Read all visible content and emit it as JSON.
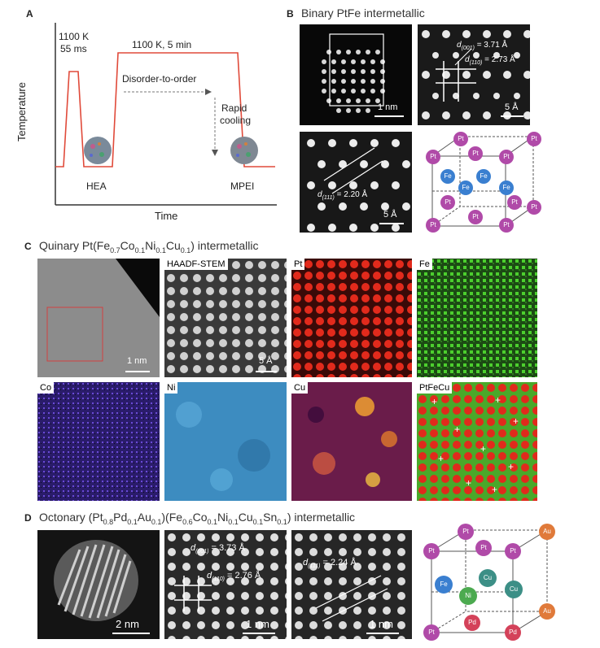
{
  "panels": {
    "A": {
      "letter": "A",
      "peak_label_top": "1100 K",
      "peak_label_bottom": "55 ms",
      "plateau_label": "1100 K, 5 min",
      "plateau_arrow_label": "Disorder-to-order",
      "cooling_label_top": "Rapid",
      "cooling_label_bottom": "cooling",
      "left_particle_label": "HEA",
      "right_particle_label": "MPEI",
      "ylabel": "Temperature",
      "xlabel": "Time",
      "line_color": "#e04a3a"
    },
    "B": {
      "letter": "B",
      "title": "Binary PtFe intermetallic",
      "scale_1": "1 nm",
      "scale_2": "5 Å",
      "scale_3": "5 Å",
      "d001": "= 3.71 Å",
      "d110": "= 2.73 Å",
      "d111": "= 2.20 Å",
      "d_symbol": "d",
      "sub_001": "(001)",
      "sub_110": "(110)",
      "sub_111": "(111)",
      "atoms": {
        "corner": "Pt",
        "face": "Pt",
        "center": "Fe"
      }
    },
    "C": {
      "letter": "C",
      "title_prefix": "Quinary Pt(Fe",
      "title_subs": [
        "0.7",
        "0.1",
        "0.1",
        "0.1"
      ],
      "title_parts": [
        "Co",
        "Ni",
        "Cu",
        ") intermetallic"
      ],
      "tiles": {
        "haadf": "HAADF-STEM",
        "pt": "Pt",
        "fe": "Fe",
        "co": "Co",
        "ni": "Ni",
        "cu": "Cu",
        "ptfecu": "PtFeCu"
      },
      "scale_1": "1 nm",
      "scale_2": "5 Å"
    },
    "D": {
      "letter": "D",
      "title_text": "Octonary (Pt",
      "title_subs": [
        "0.8",
        "0.1",
        "0.1",
        "0.6",
        "0.1",
        "0.1",
        "0.1",
        "0.1"
      ],
      "title_parts": [
        "Pd",
        "Au",
        ")(Fe",
        "Co",
        "Ni",
        "Cu",
        "Sn",
        ") intermetallic"
      ],
      "scale_1": "2 nm",
      "scale_2": "1 nm",
      "scale_3": "1 nm",
      "d001": "= 3.73 Å",
      "d110": "= 2.76 Å",
      "d111": "= 2.24 Å",
      "d_symbol": "d",
      "sub_001": "(001)",
      "sub_110": "(110)",
      "sub_111": "(111)",
      "atoms": {
        "corners": [
          "Pt",
          "Pt",
          "Au",
          "Pt",
          "Pt",
          "Pt",
          "Pd",
          "Au"
        ],
        "center_atoms": [
          "Fe",
          "Cu",
          "Ni",
          "Cu"
        ]
      }
    }
  },
  "colors": {
    "pt_atom": "#b04aa8",
    "fe_atom": "#3a7fd0",
    "cu_atom": "#3c8f86",
    "ni_atom": "#4caa50",
    "au_atom": "#e07a3a",
    "pd_atom": "#d4425a"
  }
}
